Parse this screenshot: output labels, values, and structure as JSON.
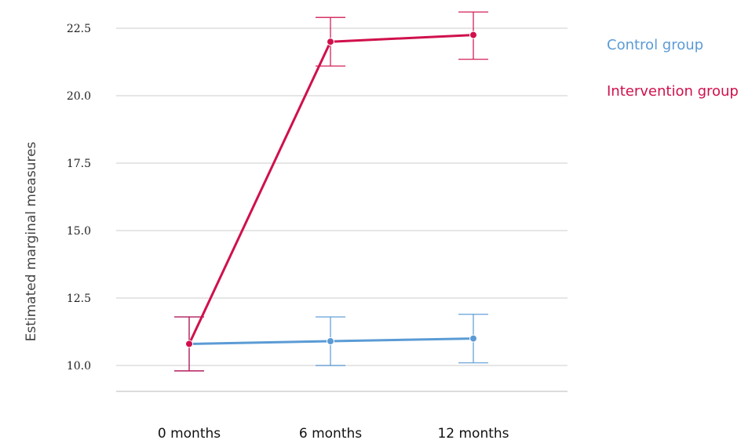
{
  "chart_data": {
    "type": "line",
    "ylabel": "Estimated marginal measures",
    "categories": [
      "0 months",
      "6 months",
      "12 months"
    ],
    "yticks": [
      "10.0",
      "12.5",
      "15.0",
      "17.5",
      "20.0",
      "22.5"
    ],
    "ytick_values": [
      10.0,
      12.5,
      15.0,
      17.5,
      20.0,
      22.5
    ],
    "ylim": [
      9.0,
      22.8
    ],
    "grid": true,
    "legend_position": "right",
    "series": [
      {
        "name": "Control group",
        "color": "#5b9bd5",
        "values": [
          10.8,
          10.9,
          11.0
        ],
        "error_low": [
          9.8,
          10.0,
          10.1
        ],
        "error_high": [
          11.8,
          11.8,
          11.9
        ]
      },
      {
        "name": "Intervention group",
        "color": "#d0104c",
        "values": [
          10.8,
          22.0,
          22.25
        ],
        "error_low": [
          9.8,
          21.1,
          21.35
        ],
        "error_high": [
          11.8,
          22.9,
          23.1
        ]
      }
    ]
  }
}
